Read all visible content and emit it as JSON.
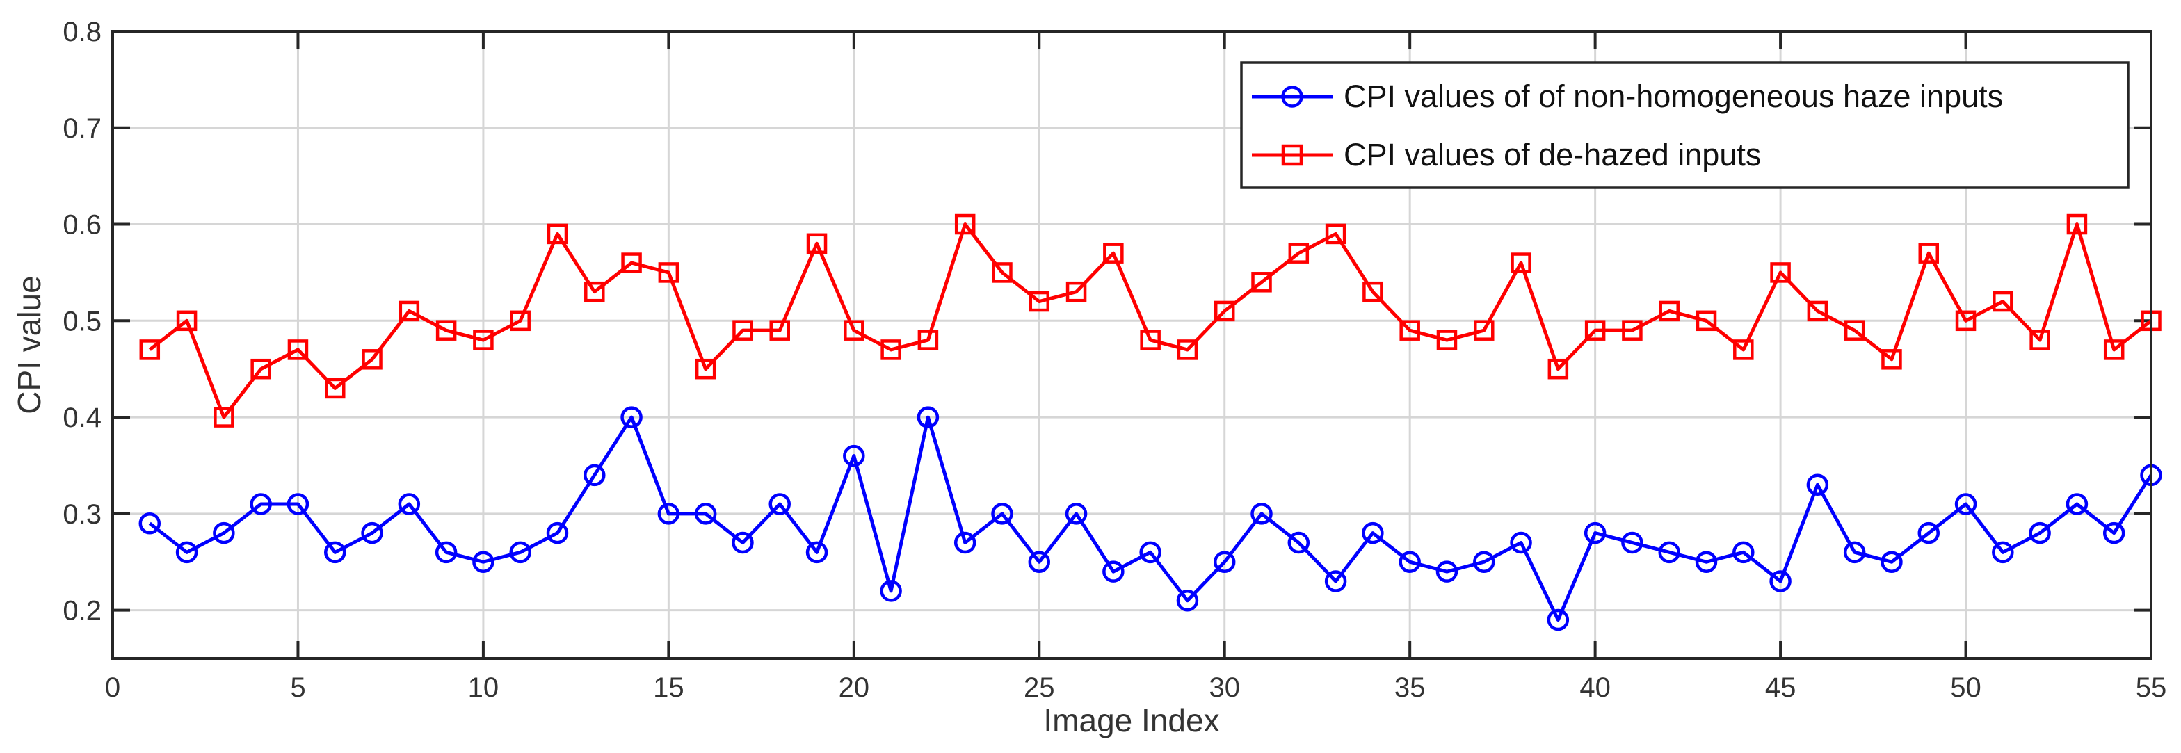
{
  "chart_data": {
    "type": "line",
    "title": "",
    "xlabel": "Image Index",
    "ylabel": "CPI value",
    "x": [
      1,
      2,
      3,
      4,
      5,
      6,
      7,
      8,
      9,
      10,
      11,
      12,
      13,
      14,
      15,
      16,
      17,
      18,
      19,
      20,
      21,
      22,
      23,
      24,
      25,
      26,
      27,
      28,
      29,
      30,
      31,
      32,
      33,
      34,
      35,
      36,
      37,
      38,
      39,
      40,
      41,
      42,
      43,
      44,
      45,
      46,
      47,
      48,
      49,
      50,
      51,
      52,
      53,
      54,
      55
    ],
    "series": [
      {
        "name": "CPI values of of non-homogeneous haze inputs",
        "color": "#0000ff",
        "marker": "circle",
        "values": [
          0.29,
          0.26,
          0.28,
          0.31,
          0.31,
          0.26,
          0.28,
          0.31,
          0.26,
          0.25,
          0.26,
          0.28,
          0.34,
          0.4,
          0.3,
          0.3,
          0.27,
          0.31,
          0.26,
          0.36,
          0.22,
          0.4,
          0.27,
          0.3,
          0.25,
          0.3,
          0.24,
          0.26,
          0.21,
          0.25,
          0.3,
          0.27,
          0.23,
          0.28,
          0.25,
          0.24,
          0.25,
          0.27,
          0.19,
          0.28,
          0.27,
          0.26,
          0.25,
          0.26,
          0.23,
          0.33,
          0.26,
          0.25,
          0.28,
          0.31,
          0.26,
          0.28,
          0.31,
          0.28,
          0.34
        ]
      },
      {
        "name": "CPI values of de-hazed inputs",
        "color": "#ff0000",
        "marker": "square",
        "values": [
          0.47,
          0.5,
          0.4,
          0.45,
          0.47,
          0.43,
          0.46,
          0.51,
          0.49,
          0.48,
          0.5,
          0.59,
          0.53,
          0.56,
          0.55,
          0.45,
          0.49,
          0.49,
          0.58,
          0.49,
          0.47,
          0.48,
          0.6,
          0.55,
          0.52,
          0.53,
          0.57,
          0.48,
          0.47,
          0.51,
          0.54,
          0.57,
          0.59,
          0.53,
          0.49,
          0.48,
          0.49,
          0.56,
          0.45,
          0.49,
          0.49,
          0.51,
          0.5,
          0.47,
          0.55,
          0.51,
          0.49,
          0.46,
          0.57,
          0.5,
          0.52,
          0.48,
          0.6,
          0.47,
          0.5
        ]
      }
    ],
    "xlim": [
      0,
      55
    ],
    "ylim": [
      0.15,
      0.8
    ],
    "xticks": [
      0,
      5,
      10,
      15,
      20,
      25,
      30,
      35,
      40,
      45,
      50,
      55
    ],
    "yticks": [
      0.2,
      0.3,
      0.4,
      0.5,
      0.6,
      0.7,
      0.8
    ],
    "grid": true,
    "legend_position": "top-right",
    "grid_color": "#d6d6d6",
    "axis_color": "#262626",
    "label_color": "#333333"
  }
}
